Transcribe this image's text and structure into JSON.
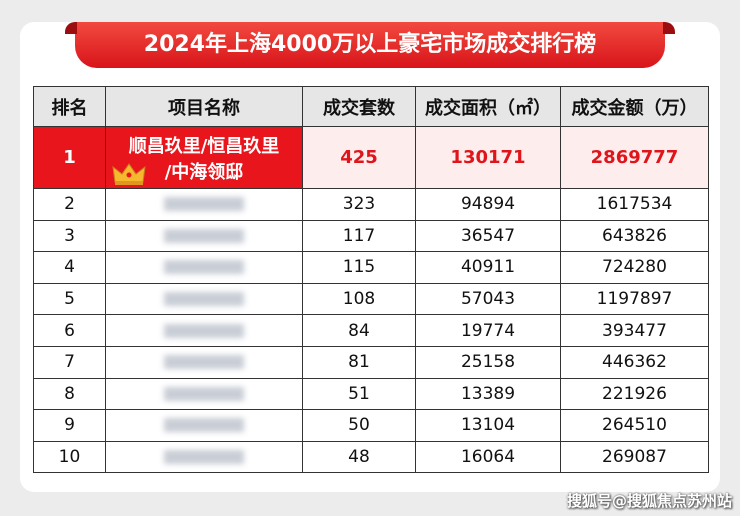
{
  "title": "2024年上海4000万以上豪宅市场成交排行榜",
  "table": {
    "header": [
      "排名",
      "项目名称",
      "成交套数",
      "成交面积（㎡）",
      "成交金额（万）"
    ],
    "rows": [
      {
        "rank": 1,
        "name": [
          "顺昌玖里/恒昌玖里",
          "/中海领邸"
        ],
        "units": 425,
        "area": 130171,
        "amount": 2869777
      },
      {
        "rank": 2,
        "units": 323,
        "area": 94894,
        "amount": 1617534
      },
      {
        "rank": 3,
        "units": 117,
        "area": 36547,
        "amount": 643826
      },
      {
        "rank": 4,
        "units": 115,
        "area": 40911,
        "amount": 724280
      },
      {
        "rank": 5,
        "units": 108,
        "area": 57043,
        "amount": 1197897
      },
      {
        "rank": 6,
        "units": 84,
        "area": 19774,
        "amount": 393477
      },
      {
        "rank": 7,
        "units": 81,
        "area": 25158,
        "amount": 446362
      },
      {
        "rank": 8,
        "units": 51,
        "area": 13389,
        "amount": 221926
      },
      {
        "rank": 9,
        "units": 50,
        "area": 13104,
        "amount": 264510
      },
      {
        "rank": 10,
        "units": 48,
        "area": 16064,
        "amount": 269087
      }
    ]
  },
  "watermark": "搜狐号@搜狐焦点苏州站"
}
